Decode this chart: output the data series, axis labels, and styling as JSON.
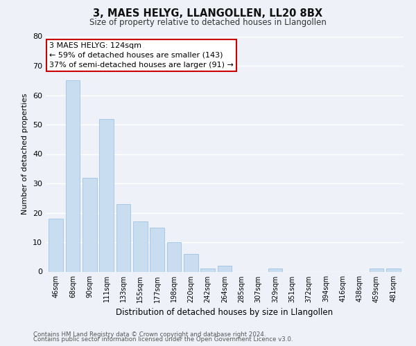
{
  "title": "3, MAES HELYG, LLANGOLLEN, LL20 8BX",
  "subtitle": "Size of property relative to detached houses in Llangollen",
  "xlabel": "Distribution of detached houses by size in Llangollen",
  "ylabel": "Number of detached properties",
  "bar_color": "#c8ddf0",
  "bar_edge_color": "#a8c8e8",
  "categories": [
    "46sqm",
    "68sqm",
    "90sqm",
    "111sqm",
    "133sqm",
    "155sqm",
    "177sqm",
    "198sqm",
    "220sqm",
    "242sqm",
    "264sqm",
    "285sqm",
    "307sqm",
    "329sqm",
    "351sqm",
    "372sqm",
    "394sqm",
    "416sqm",
    "438sqm",
    "459sqm",
    "481sqm"
  ],
  "values": [
    18,
    65,
    32,
    52,
    23,
    17,
    15,
    10,
    6,
    1,
    2,
    0,
    0,
    1,
    0,
    0,
    0,
    0,
    0,
    1,
    1
  ],
  "ylim": [
    0,
    80
  ],
  "yticks": [
    0,
    10,
    20,
    30,
    40,
    50,
    60,
    70,
    80
  ],
  "annotation_text": "3 MAES HELYG: 124sqm\n← 59% of detached houses are smaller (143)\n37% of semi-detached houses are larger (91) →",
  "annotation_box_color": "#ffffff",
  "annotation_box_edge": "#cc0000",
  "footer_line1": "Contains HM Land Registry data © Crown copyright and database right 2024.",
  "footer_line2": "Contains public sector information licensed under the Open Government Licence v3.0.",
  "background_color": "#eef2f8",
  "grid_color": "#ffffff",
  "fig_width": 6.0,
  "fig_height": 5.0
}
